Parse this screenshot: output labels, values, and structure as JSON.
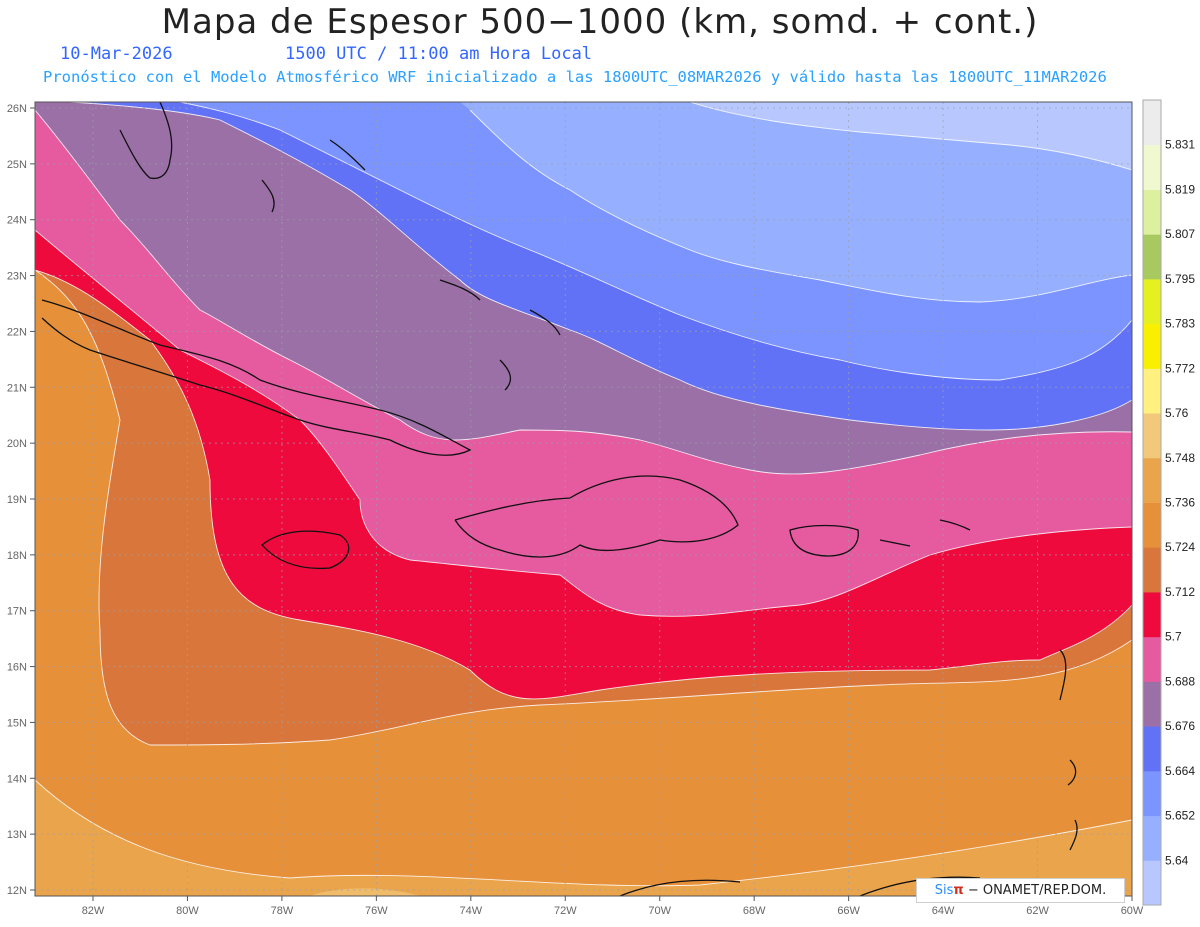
{
  "header": {
    "title": "Mapa de Espesor 500−1000 (km, somd. + cont.)",
    "date": "10-Mar-2026",
    "time": "1500 UTC / 11:00 am Hora Local",
    "forecast_note": "Pronóstico con el Modelo Atmosférico WRF inicializado a las 1800UTC_08MAR2026 y válido hasta las  1800UTC_11MAR2026"
  },
  "axes": {
    "lat_labels": [
      "26N",
      "25N",
      "24N",
      "23N",
      "22N",
      "21N",
      "20N",
      "19N",
      "18N",
      "17N",
      "16N",
      "15N",
      "14N",
      "13N",
      "12N"
    ],
    "lon_labels": [
      "82W",
      "80W",
      "78W",
      "76W",
      "74W",
      "72W",
      "70W",
      "68W",
      "66W",
      "64W",
      "62W",
      "60W"
    ]
  },
  "legend": {
    "levels": [
      "5.64",
      "5.652",
      "5.664",
      "5.676",
      "5.688",
      "5.7",
      "5.712",
      "5.724",
      "5.736",
      "5.748",
      "5.76",
      "5.772",
      "5.783",
      "5.795",
      "5.807",
      "5.819",
      "5.831"
    ],
    "colors": [
      "#b8c8ff",
      "#96b0ff",
      "#7b94ff",
      "#6272f7",
      "#9a70a6",
      "#e65aa0",
      "#ee0a3c",
      "#d8763c",
      "#e6903a",
      "#eaa44c",
      "#f2c87a",
      "#fff080",
      "#f8f000",
      "#e4f020",
      "#a8c860",
      "#dcf0a0",
      "#f0f8d0",
      "#ececec"
    ]
  },
  "credit": {
    "sis": "Sis",
    "pi": "π",
    "org": "− ONAMET/REP.DOM."
  }
}
